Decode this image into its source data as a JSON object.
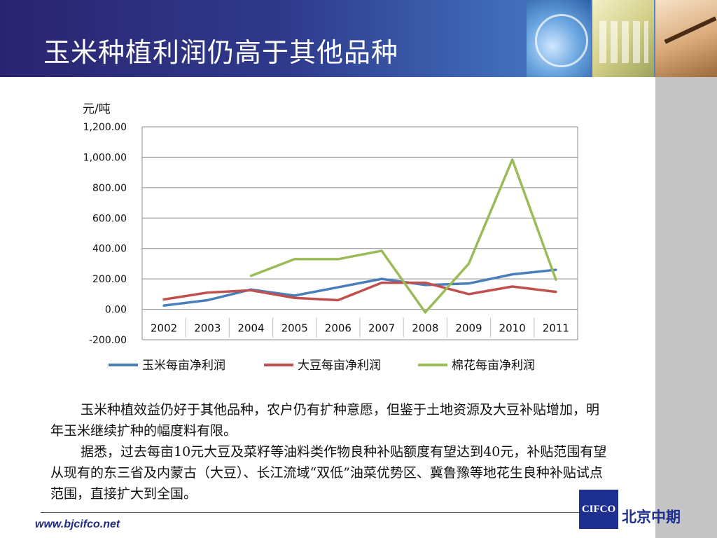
{
  "slide": {
    "title": "玉米种植利润仍高于其他品种"
  },
  "chart_data": {
    "type": "line",
    "ylabel": "元/吨",
    "xlabel": "",
    "title": "",
    "categories": [
      "2002",
      "2003",
      "2004",
      "2005",
      "2006",
      "2007",
      "2008",
      "2009",
      "2010",
      "2011"
    ],
    "ylim": [
      -200,
      1200
    ],
    "yticks": [
      1200,
      1000,
      800,
      600,
      400,
      200,
      0,
      -200
    ],
    "ytick_labels": [
      "1,200.00",
      "1,000.00",
      "800.00",
      "600.00",
      "400.00",
      "200.00",
      "0.00",
      "-200.00"
    ],
    "grid": true,
    "legend_position": "bottom",
    "series": [
      {
        "name": "玉米每亩净利润",
        "color": "#4a7ebb",
        "values": [
          25,
          60,
          130,
          90,
          145,
          200,
          160,
          170,
          230,
          260
        ]
      },
      {
        "name": "大豆每亩净利润",
        "color": "#c0504d",
        "values": [
          65,
          110,
          125,
          75,
          60,
          175,
          175,
          100,
          150,
          115
        ]
      },
      {
        "name": "棉花每亩净利润",
        "color": "#9bbb59",
        "values": [
          null,
          null,
          220,
          330,
          330,
          385,
          -20,
          300,
          985,
          195
        ]
      }
    ]
  },
  "body": {
    "para1": "玉米种植效益仍好于其他品种，农户仍有扩种意愿，但鉴于土地资源及大豆补贴增加，明年玉米继续扩种的幅度料有限。",
    "para2": "据悉，过去每亩10元大豆及菜籽等油料类作物良种补贴额度有望达到40元，补贴范围有望从现有的东三省及内蒙古（大豆）、长江流域“双低”油菜优势区、冀鲁豫等地花生良种补贴试点范围，直接扩大到全国。"
  },
  "footer": {
    "url": "www.bjcifco.net",
    "logo_text": "CIFCO",
    "company_name": "北京中期"
  }
}
